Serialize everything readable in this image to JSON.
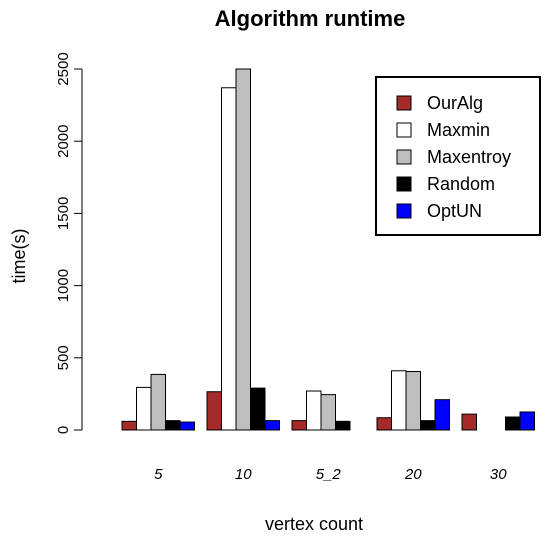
{
  "chart_data": {
    "type": "bar",
    "title": "Algorithm runtime",
    "xlabel": "vertex count",
    "ylabel": "time(s)",
    "categories": [
      "5",
      "10",
      "5_2",
      "20",
      "30"
    ],
    "ylim": [
      0,
      2500
    ],
    "yticks": [
      0,
      500,
      1000,
      1500,
      2000,
      2500
    ],
    "grid": false,
    "legend_position": "top-right",
    "series": [
      {
        "name": "OurAlg",
        "color": "#a52a2a",
        "values": [
          60,
          265,
          65,
          85,
          110
        ]
      },
      {
        "name": "Maxmin",
        "color": "#ffffff",
        "values": [
          295,
          2370,
          270,
          410,
          0
        ]
      },
      {
        "name": "Maxentroy",
        "color": "#bebebe",
        "values": [
          385,
          2500,
          245,
          405,
          0
        ]
      },
      {
        "name": "Random",
        "color": "#000000",
        "values": [
          65,
          290,
          60,
          65,
          90
        ]
      },
      {
        "name": "OptUN",
        "color": "#0000ff",
        "values": [
          55,
          65,
          0,
          210,
          125
        ]
      }
    ]
  }
}
